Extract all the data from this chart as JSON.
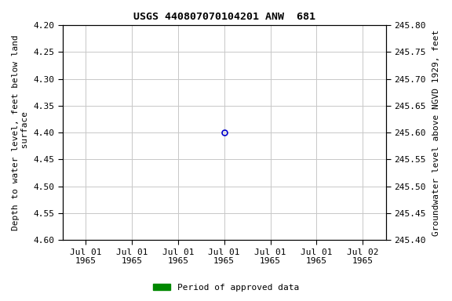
{
  "title": "USGS 440807070104201 ANW  681",
  "ylabel_left": "Depth to water level, feet below land\n surface",
  "ylabel_right": "Groundwater level above NGVD 1929, feet",
  "ylim_left": [
    4.6,
    4.2
  ],
  "ylim_right": [
    245.4,
    245.8
  ],
  "yticks_left": [
    4.2,
    4.25,
    4.3,
    4.35,
    4.4,
    4.45,
    4.5,
    4.55,
    4.6
  ],
  "yticks_right": [
    245.8,
    245.75,
    245.7,
    245.65,
    245.6,
    245.55,
    245.5,
    245.45,
    245.4
  ],
  "open_circle_color": "#0000cc",
  "green_square_color": "#008800",
  "legend_label": "Period of approved data",
  "legend_color": "#008800",
  "background_color": "#ffffff",
  "grid_color": "#c8c8c8",
  "title_fontsize": 9.5,
  "label_fontsize": 8,
  "tick_fontsize": 8
}
